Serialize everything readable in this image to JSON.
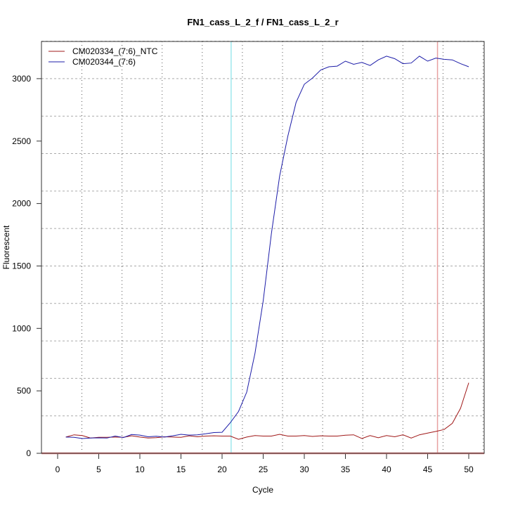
{
  "chart_data": {
    "type": "line",
    "title": "FN1_cass_L_2_f / FN1_cass_L_2_r",
    "xlabel": "Cycle",
    "ylabel": "Fluorescent",
    "xlim": [
      -2,
      52
    ],
    "ylim": [
      0,
      3300
    ],
    "xticks": [
      0,
      5,
      10,
      15,
      20,
      25,
      30,
      35,
      40,
      45,
      50
    ],
    "yticks": [
      0,
      500,
      1000,
      1500,
      2000,
      2500,
      3000
    ],
    "grid": true,
    "legend_position": "top-left",
    "x": [
      1,
      2,
      3,
      4,
      5,
      6,
      7,
      8,
      9,
      10,
      11,
      12,
      13,
      14,
      15,
      16,
      17,
      18,
      19,
      20,
      21,
      22,
      23,
      24,
      25,
      26,
      27,
      28,
      29,
      30,
      31,
      32,
      33,
      34,
      35,
      36,
      37,
      38,
      39,
      40,
      41,
      42,
      43,
      44,
      45,
      46,
      47,
      48,
      49,
      50
    ],
    "series": [
      {
        "name": "CM020334_(7:6)_NTC",
        "color": "#a01818",
        "values": [
          130,
          148,
          142,
          122,
          128,
          128,
          130,
          128,
          140,
          130,
          122,
          125,
          132,
          130,
          128,
          140,
          132,
          138,
          140,
          138,
          138,
          112,
          130,
          142,
          138,
          138,
          152,
          138,
          138,
          142,
          135,
          140,
          138,
          138,
          145,
          148,
          118,
          142,
          125,
          142,
          132,
          148,
          122,
          148,
          162,
          175,
          190,
          240,
          360,
          565
        ]
      },
      {
        "name": "CM020344_(7:6)",
        "color": "#1c1ca8",
        "values": [
          130,
          128,
          118,
          122,
          124,
          122,
          138,
          126,
          150,
          146,
          132,
          136,
          130,
          140,
          152,
          146,
          148,
          156,
          166,
          168,
          245,
          335,
          490,
          800,
          1220,
          1760,
          2220,
          2540,
          2810,
          2955,
          3005,
          3070,
          3095,
          3100,
          3140,
          3115,
          3130,
          3105,
          3150,
          3180,
          3160,
          3120,
          3125,
          3180,
          3140,
          3165,
          3155,
          3150,
          3120,
          3095
        ]
      }
    ],
    "vertical_markers": [
      {
        "cycle": 21.1,
        "color": "#9ee8ee"
      },
      {
        "cycle": 46.2,
        "color": "#e8a0a0"
      }
    ],
    "threshold": {
      "value": 0,
      "color": "#e08080"
    }
  }
}
